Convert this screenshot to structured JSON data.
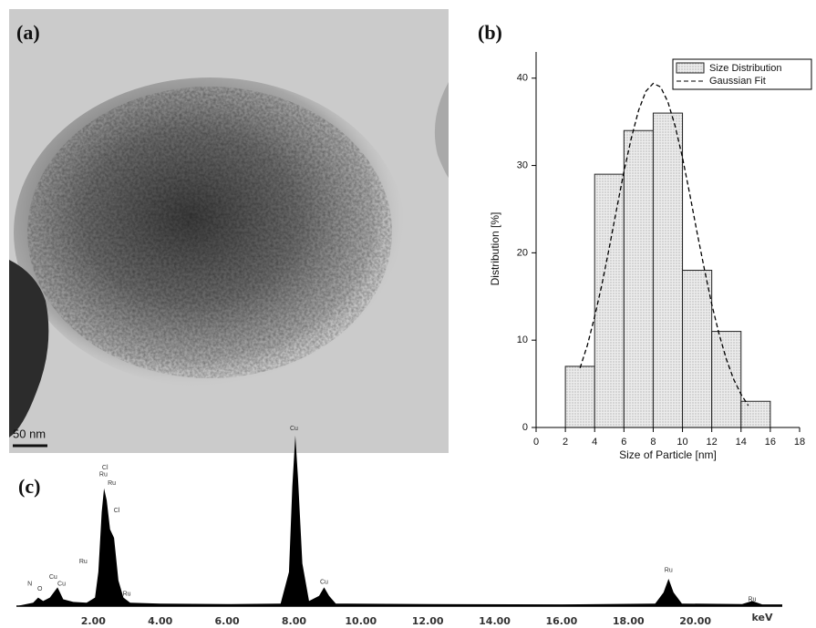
{
  "panel_labels": [
    "(a)",
    "(b)",
    "(c)"
  ],
  "scale_bar": "50 nm",
  "chart_data": [
    {
      "type": "histogram",
      "xlabel": "Size of Particle [nm]",
      "ylabel": "Distribution [%]",
      "bins": [
        2,
        4,
        6,
        8,
        10,
        12,
        14,
        16
      ],
      "series": [
        {
          "name": "Size Distribution",
          "values": [
            7,
            29,
            34,
            36,
            18,
            11,
            3
          ],
          "color": "#dedede"
        },
        {
          "name": "Gaussian Fit",
          "style": "dashed",
          "color": "#000000",
          "x": [
            3,
            3.5,
            4,
            4.5,
            5,
            5.5,
            6,
            6.5,
            7,
            7.5,
            8,
            8.5,
            9,
            9.5,
            10,
            10.5,
            11,
            11.5,
            12,
            12.5,
            13,
            13.5,
            14,
            14.5
          ],
          "values": [
            6.8,
            9.4,
            12.7,
            16.4,
            20.6,
            25.0,
            29.3,
            33.1,
            36.3,
            38.5,
            39.4,
            39.0,
            37.3,
            34.5,
            30.9,
            26.7,
            22.3,
            18.1,
            14.1,
            10.7,
            7.8,
            5.5,
            3.8,
            2.5
          ]
        }
      ],
      "xlim": [
        0,
        18
      ],
      "xticks": [
        0,
        2,
        4,
        6,
        8,
        10,
        12,
        14,
        16,
        18
      ],
      "ylim": [
        0,
        43
      ],
      "yticks": [
        0,
        10,
        20,
        30,
        40
      ],
      "legend": "upper right"
    },
    {
      "type": "area",
      "xlabel": "keV",
      "color": "#000000",
      "x": [
        -0.3,
        0.2,
        0.35,
        0.5,
        0.7,
        0.93,
        1.1,
        1.4,
        1.8,
        2.05,
        2.15,
        2.25,
        2.32,
        2.4,
        2.5,
        2.62,
        2.75,
        2.9,
        3.1,
        4,
        6,
        7.6,
        7.85,
        7.95,
        8.04,
        8.12,
        8.25,
        8.45,
        8.75,
        8.9,
        9.05,
        9.25,
        12,
        16,
        18.8,
        19.05,
        19.2,
        19.35,
        19.6,
        21.4,
        21.7,
        22,
        22.6
      ],
      "values": [
        0,
        2,
        5,
        3,
        5,
        11,
        4,
        2.5,
        2,
        5,
        20,
        55,
        69,
        62,
        45,
        40,
        15,
        5,
        2,
        1.5,
        1.2,
        1.5,
        20,
        70,
        100,
        75,
        25,
        3,
        6,
        11,
        6,
        1.5,
        1.2,
        1,
        1.5,
        8,
        16,
        8,
        1.5,
        1.2,
        3,
        1,
        1
      ],
      "xlim": [
        -0.3,
        22.6
      ],
      "ylim": [
        0,
        110
      ],
      "xticks": [
        {
          "value": 2,
          "label": "2.00"
        },
        {
          "value": 4,
          "label": "4.00"
        },
        {
          "value": 6,
          "label": "6.00"
        },
        {
          "value": 8,
          "label": "8.00"
        },
        {
          "value": 10,
          "label": "10.00"
        },
        {
          "value": 12,
          "label": "12.00"
        },
        {
          "value": 14,
          "label": "14.00"
        },
        {
          "value": 16,
          "label": "16.00"
        },
        {
          "value": 18,
          "label": "18.00"
        },
        {
          "value": 20,
          "label": "20.00"
        }
      ],
      "annotations": [
        {
          "text": "N",
          "x": 0.1,
          "y": 13
        },
        {
          "text": "O",
          "x": 0.4,
          "y": 10
        },
        {
          "text": "Cu",
          "x": 0.8,
          "y": 17
        },
        {
          "text": "Cu",
          "x": 1.05,
          "y": 13
        },
        {
          "text": "Ru",
          "x": 1.7,
          "y": 26
        },
        {
          "text": "Cl",
          "x": 2.35,
          "y": 81
        },
        {
          "text": "Ru",
          "x": 2.3,
          "y": 77
        },
        {
          "text": "Ru",
          "x": 2.55,
          "y": 72
        },
        {
          "text": "Cl",
          "x": 2.7,
          "y": 56
        },
        {
          "text": "Ru",
          "x": 3.0,
          "y": 7
        },
        {
          "text": "Cu",
          "x": 8.0,
          "y": 104
        },
        {
          "text": "Cu",
          "x": 8.9,
          "y": 14
        },
        {
          "text": "Ru",
          "x": 19.2,
          "y": 21
        },
        {
          "text": "Ru",
          "x": 21.7,
          "y": 4
        }
      ]
    }
  ]
}
